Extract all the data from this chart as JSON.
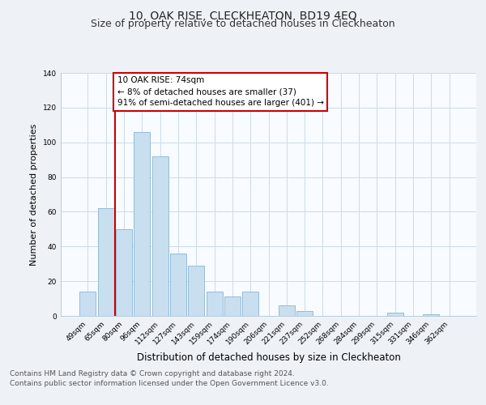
{
  "title": "10, OAK RISE, CLECKHEATON, BD19 4EQ",
  "subtitle": "Size of property relative to detached houses in Cleckheaton",
  "xlabel": "Distribution of detached houses by size in Cleckheaton",
  "ylabel": "Number of detached properties",
  "bar_labels": [
    "49sqm",
    "65sqm",
    "80sqm",
    "96sqm",
    "112sqm",
    "127sqm",
    "143sqm",
    "159sqm",
    "174sqm",
    "190sqm",
    "206sqm",
    "221sqm",
    "237sqm",
    "252sqm",
    "268sqm",
    "284sqm",
    "299sqm",
    "315sqm",
    "331sqm",
    "346sqm",
    "362sqm"
  ],
  "bar_values": [
    14,
    62,
    50,
    106,
    92,
    36,
    29,
    14,
    11,
    14,
    0,
    6,
    3,
    0,
    0,
    0,
    0,
    2,
    0,
    1,
    0
  ],
  "bar_color": "#c8dff0",
  "bar_edge_color": "#8ab4d0",
  "annotation_line1": "10 OAK RISE: 74sqm",
  "annotation_line2": "← 8% of detached houses are smaller (37)",
  "annotation_line3": "91% of semi-detached houses are larger (401) →",
  "annotation_box_color": "#ffffff",
  "annotation_box_edge_color": "#cc0000",
  "vertical_line_color": "#cc0000",
  "vertical_line_x": 1.5,
  "ylim": [
    0,
    140
  ],
  "yticks": [
    0,
    20,
    40,
    60,
    80,
    100,
    120,
    140
  ],
  "footer_line1": "Contains HM Land Registry data © Crown copyright and database right 2024.",
  "footer_line2": "Contains public sector information licensed under the Open Government Licence v3.0.",
  "background_color": "#eef2f7",
  "plot_background_color": "#f8fbff",
  "grid_color": "#ccdaeb",
  "title_fontsize": 10,
  "subtitle_fontsize": 9,
  "xlabel_fontsize": 8.5,
  "ylabel_fontsize": 8,
  "tick_fontsize": 6.5,
  "annotation_fontsize": 7.5,
  "footer_fontsize": 6.5
}
